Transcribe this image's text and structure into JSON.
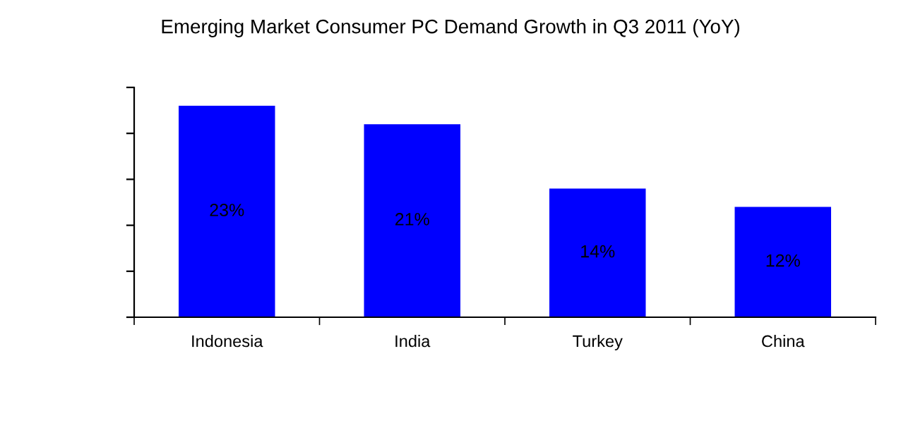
{
  "chart_data": {
    "type": "bar",
    "title": "Emerging Market Consumer PC Demand Growth in Q3 2011 (YoY)",
    "categories": [
      "Indonesia",
      "India",
      "Turkey",
      "China"
    ],
    "values": [
      23,
      21,
      14,
      12
    ],
    "value_labels": [
      "23%",
      "21%",
      "14%",
      "12%"
    ],
    "color": "#0000ff",
    "ylim": [
      0,
      25
    ],
    "yticks": [
      {
        "value": 0,
        "label": null
      },
      {
        "value": 5,
        "label": null
      },
      {
        "value": 10,
        "label": null
      },
      {
        "value": 15,
        "label": null
      },
      {
        "value": 20,
        "label": null
      },
      {
        "value": 25,
        "label": null
      }
    ],
    "grid": false,
    "legend": false
  }
}
